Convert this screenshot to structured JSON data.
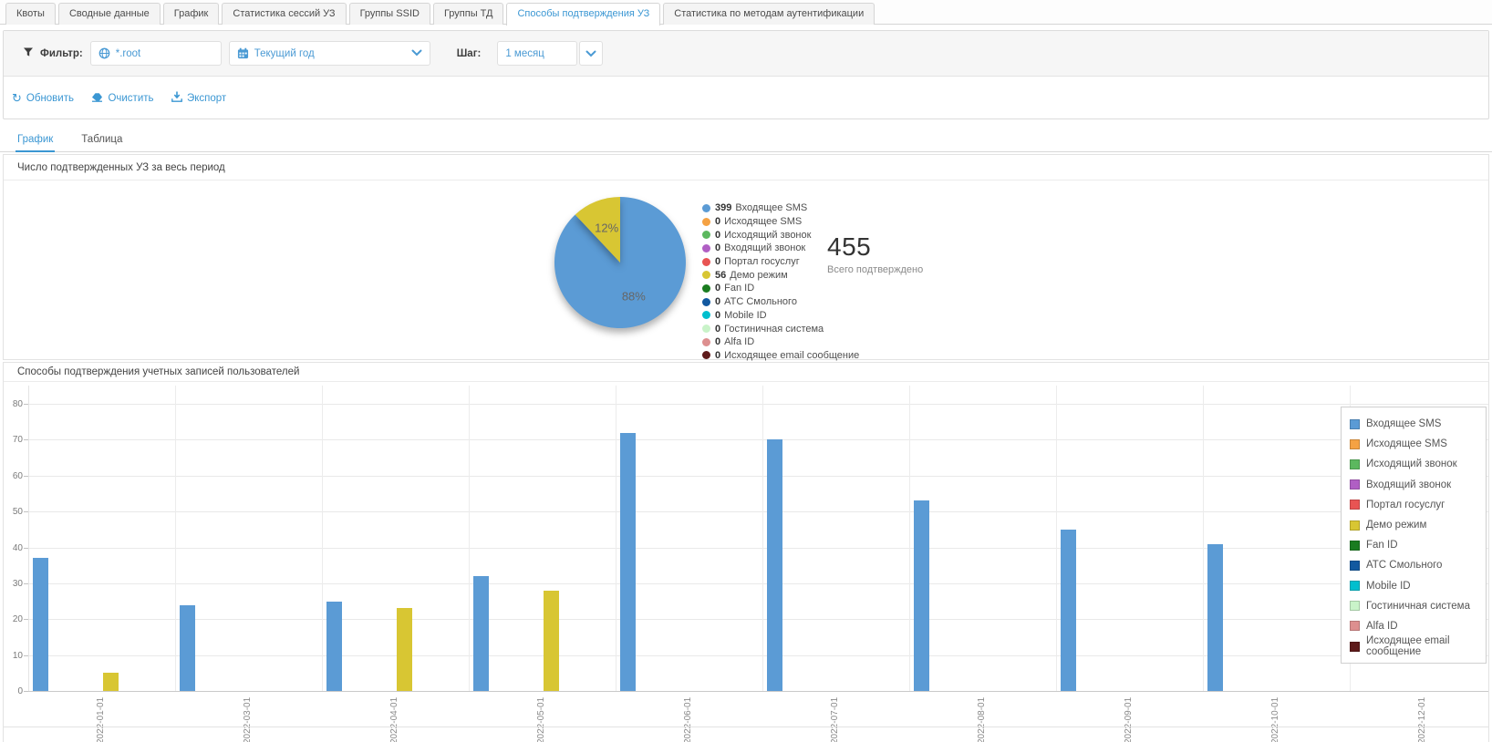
{
  "tabs": {
    "items": [
      {
        "label": "Квоты",
        "active": false
      },
      {
        "label": "Сводные данные",
        "active": false
      },
      {
        "label": "График",
        "active": false
      },
      {
        "label": "Статистика сессий УЗ",
        "active": false
      },
      {
        "label": "Группы SSID",
        "active": false
      },
      {
        "label": "Группы ТД",
        "active": false
      },
      {
        "label": "Способы подтверждения УЗ",
        "active": true
      },
      {
        "label": "Статистика по методам аутентификации",
        "active": false
      }
    ]
  },
  "filter": {
    "label": "Фильтр:",
    "scope": {
      "value": "*.root"
    },
    "period": {
      "value": "Текущий год"
    },
    "step_label": "Шаг:",
    "step": {
      "value": "1 месяц"
    }
  },
  "actions": {
    "refresh": "Обновить",
    "clear": "Очистить",
    "export": "Экспорт"
  },
  "view_tabs": {
    "items": [
      {
        "label": "График",
        "active": true
      },
      {
        "label": "Таблица",
        "active": false
      }
    ]
  },
  "pie_section": {
    "title": "Число подтвержденных УЗ за весь период",
    "total_value": "455",
    "total_caption": "Всего подтверждено"
  },
  "bar_section": {
    "title": "Способы подтверждения учетных записей пользователей"
  },
  "chart_data": [
    {
      "type": "pie",
      "title": "Число подтвержденных УЗ за весь период",
      "total": 455,
      "slices": [
        {
          "label": "Входящее SMS",
          "value": 399,
          "pct": 88,
          "pct_label": "88%",
          "color": "#5b9bd5"
        },
        {
          "label": "Демо режим",
          "value": 56,
          "pct": 12,
          "pct_label": "12%",
          "color": "#d8c633"
        }
      ],
      "legend_position": "right",
      "legend": [
        {
          "label": "Входящее SMS",
          "value": 399,
          "color": "#5b9bd5"
        },
        {
          "label": "Исходящее SMS",
          "value": 0,
          "color": "#f5a243"
        },
        {
          "label": "Исходящий звонок",
          "value": 0,
          "color": "#5cb85f"
        },
        {
          "label": "Входящий звонок",
          "value": 0,
          "color": "#b05fc4"
        },
        {
          "label": "Портал госуслуг",
          "value": 0,
          "color": "#e85453"
        },
        {
          "label": "Демо режим",
          "value": 56,
          "color": "#d8c633"
        },
        {
          "label": "Fan ID",
          "value": 0,
          "color": "#1a7c20"
        },
        {
          "label": "АТС Смольного",
          "value": 0,
          "color": "#1259a0"
        },
        {
          "label": "Mobile ID",
          "value": 0,
          "color": "#00bfce"
        },
        {
          "label": "Гостиничная система",
          "value": 0,
          "color": "#c9f3c9"
        },
        {
          "label": "Alfa ID",
          "value": 0,
          "color": "#dd8f8f"
        },
        {
          "label": "Исходящее email сообщение",
          "value": 0,
          "color": "#5e1a1a"
        }
      ]
    },
    {
      "type": "bar",
      "title": "Способы подтверждения учетных записей пользователей",
      "categories": [
        "2022-01-01",
        "2022-03-01",
        "2022-04-01",
        "2022-05-01",
        "2022-06-01",
        "2022-07-01",
        "2022-08-01",
        "2022-09-01",
        "2022-10-01",
        "2022-12-01"
      ],
      "series": [
        {
          "name": "Входящее SMS",
          "color": "#5b9bd5",
          "values": [
            37,
            24,
            25,
            32,
            72,
            70,
            53,
            45,
            41,
            0
          ]
        },
        {
          "name": "Демо режим",
          "color": "#d8c633",
          "values": [
            5,
            0,
            23,
            28,
            0,
            0,
            0,
            0,
            0,
            0
          ]
        }
      ],
      "ylim": [
        0,
        80
      ],
      "ytick_step": 10,
      "grid": true,
      "legend_position": "right",
      "legend": [
        {
          "label": "Входящее SMS",
          "color": "#5b9bd5"
        },
        {
          "label": "Исходящее SMS",
          "color": "#f5a243"
        },
        {
          "label": "Исходящий звонок",
          "color": "#5cb85f"
        },
        {
          "label": "Входящий звонок",
          "color": "#b05fc4"
        },
        {
          "label": "Портал госуслуг",
          "color": "#e85453"
        },
        {
          "label": "Демо режим",
          "color": "#d8c633"
        },
        {
          "label": "Fan ID",
          "color": "#1a7c20"
        },
        {
          "label": "АТС Смольного",
          "color": "#1259a0"
        },
        {
          "label": "Mobile ID",
          "color": "#00bfce"
        },
        {
          "label": "Гостиничная система",
          "color": "#c9f3c9"
        },
        {
          "label": "Alfa ID",
          "color": "#dd8f8f"
        },
        {
          "label": "Исходящее email сообщение",
          "color": "#5e1a1a"
        }
      ]
    }
  ]
}
